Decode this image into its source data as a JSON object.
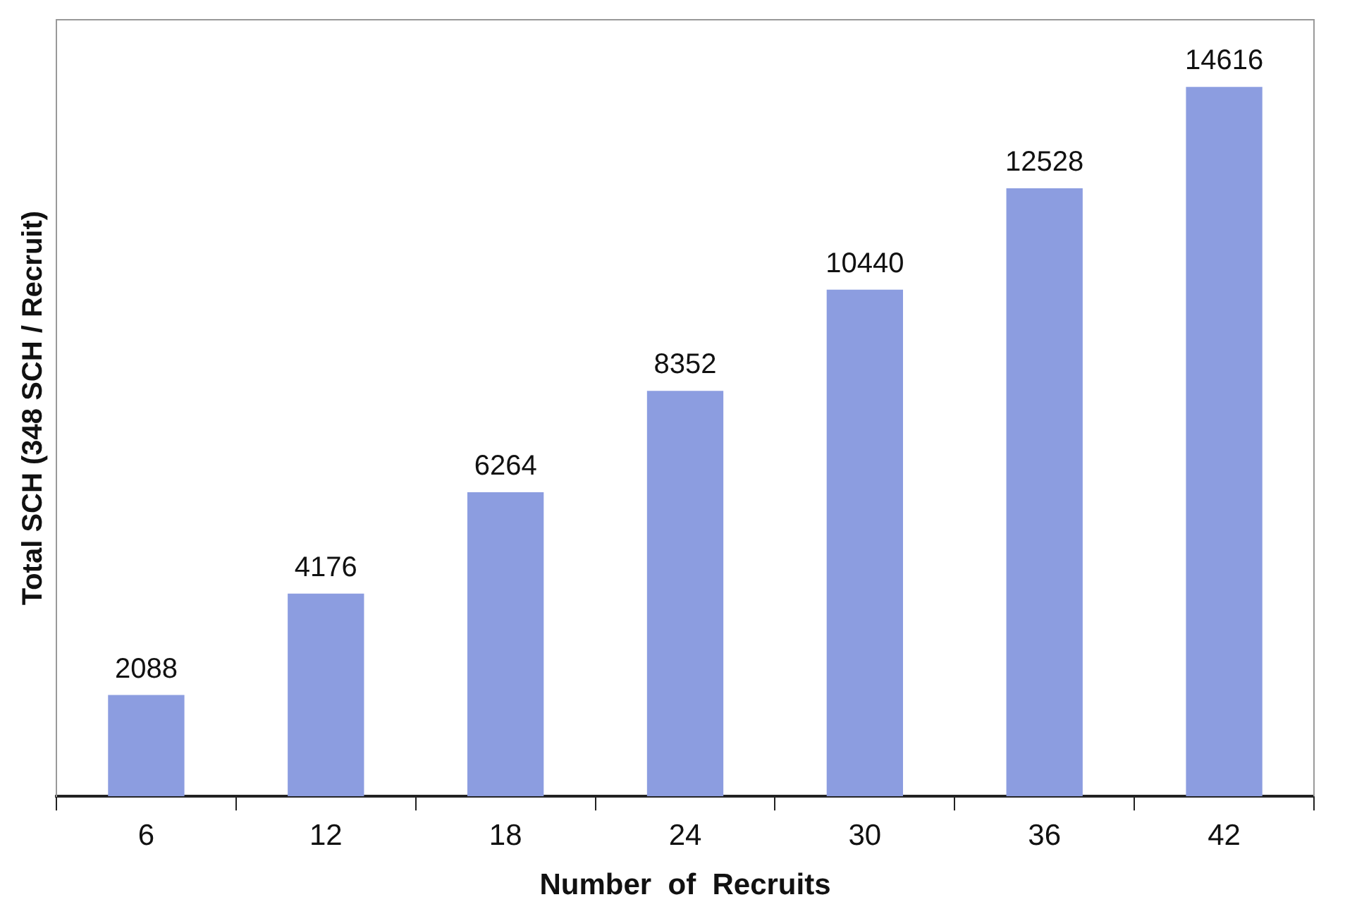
{
  "chart_data": {
    "type": "bar",
    "xlabel": "Number  of  Recruits",
    "ylabel": "Total SCH (348 SCH / Recruit)",
    "categories": [
      "6",
      "12",
      "18",
      "24",
      "30",
      "36",
      "42"
    ],
    "values": [
      2088,
      4176,
      6264,
      8352,
      10440,
      12528,
      14616
    ],
    "color": "#8c9de0",
    "data_labels": true,
    "grid": false,
    "legend": false
  }
}
